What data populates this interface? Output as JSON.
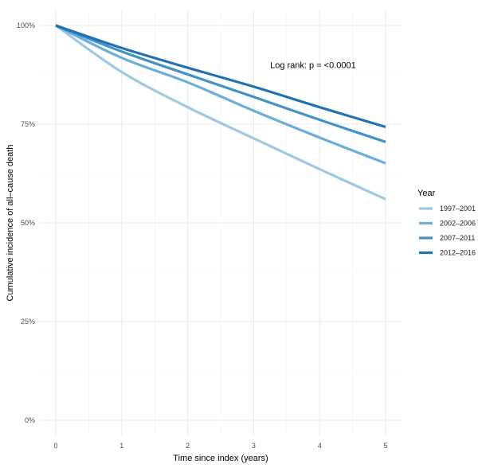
{
  "chart_data": {
    "type": "line",
    "title": "",
    "xlabel": "Time since index (years)",
    "ylabel": "Cumulative incidence of all–cause death",
    "xlim": [
      0,
      5
    ],
    "ylim": [
      0,
      100
    ],
    "x_ticks": [
      0,
      1,
      2,
      3,
      4,
      5
    ],
    "x_tick_labels": [
      "0",
      "1",
      "2",
      "3",
      "4",
      "5"
    ],
    "y_ticks": [
      0,
      25,
      50,
      75,
      100
    ],
    "y_tick_labels": [
      "0%",
      "25%",
      "50%",
      "75%",
      "100%"
    ],
    "grid": true,
    "legend": {
      "title": "Year",
      "placement": "right"
    },
    "annotation": {
      "text": "Log rank: p = <0.0001",
      "x": 3.9,
      "y": 90
    },
    "x": [
      0,
      1,
      2,
      3,
      4,
      5
    ],
    "series": [
      {
        "name": "1997–2001",
        "color": "#9ecae1",
        "values": [
          100,
          88.2,
          79.3,
          71.4,
          63.6,
          56.0
        ]
      },
      {
        "name": "2002–2006",
        "color": "#6baed6",
        "values": [
          100,
          91.8,
          85.6,
          78.4,
          71.6,
          65.1
        ]
      },
      {
        "name": "2007–2011",
        "color": "#4292c6",
        "values": [
          100,
          93.4,
          87.6,
          81.9,
          76.1,
          70.5
        ]
      },
      {
        "name": "2012–2016",
        "color": "#2171b5",
        "values": [
          100,
          94.3,
          89.3,
          84.5,
          79.3,
          74.3
        ]
      }
    ]
  }
}
